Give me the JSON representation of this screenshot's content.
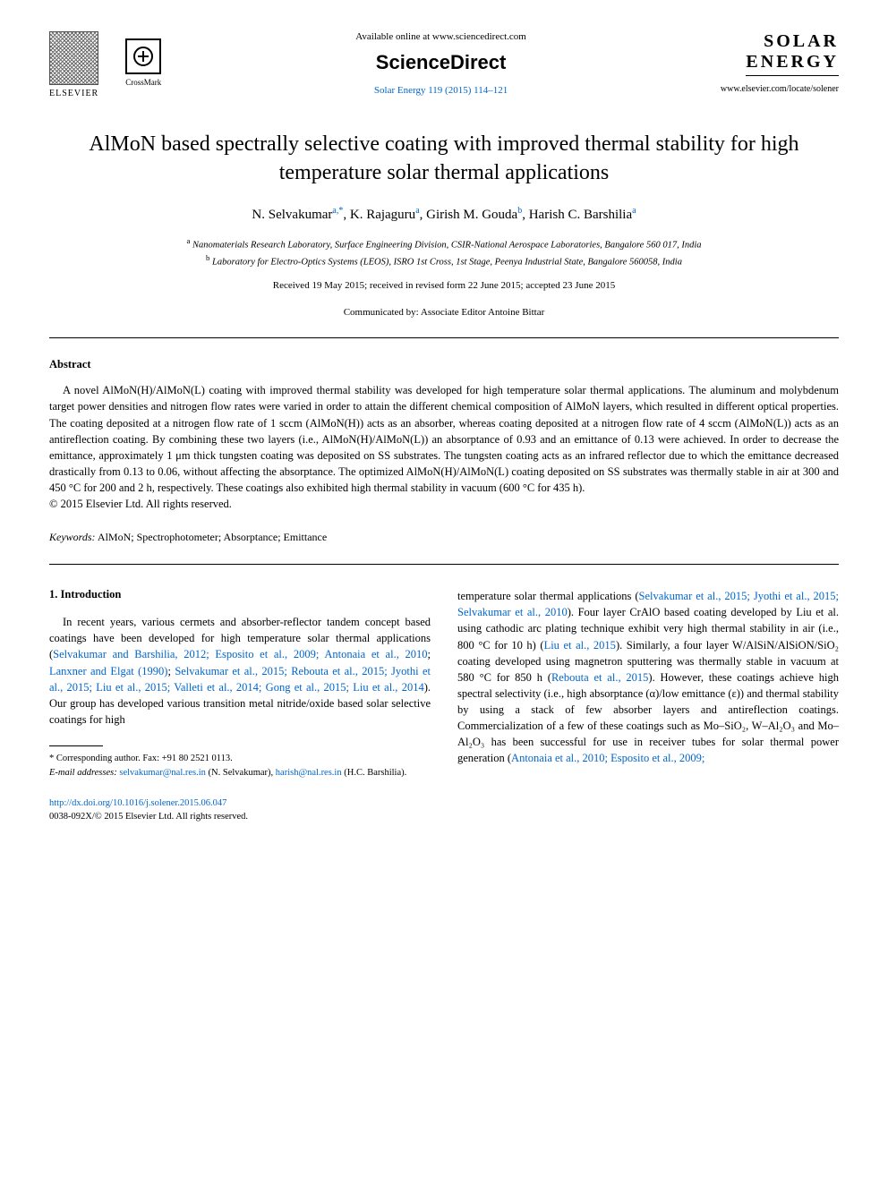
{
  "header": {
    "elsevier_label": "ELSEVIER",
    "crossmark_label": "CrossMark",
    "available_text": "Available online at www.sciencedirect.com",
    "sciencedirect": "ScienceDirect",
    "citation": "Solar Energy 119 (2015) 114–121",
    "journal_line1": "SOLAR",
    "journal_line2": "ENERGY",
    "journal_url": "www.elsevier.com/locate/solener"
  },
  "title": "AlMoN based spectrally selective coating with improved thermal stability for high temperature solar thermal applications",
  "authors_html": "N. Selvakumar|a,*|, K. Rajaguru|a|, Girish M. Gouda|b|, Harish C. Barshilia|a|",
  "authors": [
    {
      "name": "N. Selvakumar",
      "sup": "a,",
      "ast": "*"
    },
    {
      "name": "K. Rajaguru",
      "sup": "a"
    },
    {
      "name": "Girish M. Gouda",
      "sup": "b"
    },
    {
      "name": "Harish C. Barshilia",
      "sup": "a"
    }
  ],
  "affiliations": {
    "a": "Nanomaterials Research Laboratory, Surface Engineering Division, CSIR-National Aerospace Laboratories, Bangalore 560 017, India",
    "b": "Laboratory for Electro-Optics Systems (LEOS), ISRO 1st Cross, 1st Stage, Peenya Industrial State, Bangalore 560058, India"
  },
  "dates": "Received 19 May 2015; received in revised form 22 June 2015; accepted 23 June 2015",
  "communicated": "Communicated by: Associate Editor Antoine Bittar",
  "abstract_heading": "Abstract",
  "abstract_body": "A novel AlMoN(H)/AlMoN(L) coating with improved thermal stability was developed for high temperature solar thermal applications. The aluminum and molybdenum target power densities and nitrogen flow rates were varied in order to attain the different chemical composition of AlMoN layers, which resulted in different optical properties. The coating deposited at a nitrogen flow rate of 1 sccm (AlMoN(H)) acts as an absorber, whereas coating deposited at a nitrogen flow rate of 4 sccm (AlMoN(L)) acts as an antireflection coating. By combining these two layers (i.e., AlMoN(H)/AlMoN(L)) an absorptance of 0.93 and an emittance of 0.13 were achieved. In order to decrease the emittance, approximately 1 μm thick tungsten coating was deposited on SS substrates. The tungsten coating acts as an infrared reflector due to which the emittance decreased drastically from 0.13 to 0.06, without affecting the absorptance. The optimized AlMoN(H)/AlMoN(L) coating deposited on SS substrates was thermally stable in air at 300 and 450 °C for 200 and 2 h, respectively. These coatings also exhibited high thermal stability in vacuum (600 °C for 435 h).",
  "copyright": "© 2015 Elsevier Ltd. All rights reserved.",
  "keywords_label": "Keywords:",
  "keywords_value": "AlMoN; Spectrophotometer; Absorptance; Emittance",
  "intro_heading": "1. Introduction",
  "col_left_text_pre": "In recent years, various cermets and absorber-reflector tandem concept based coatings have been developed for high temperature solar thermal applications (",
  "col_left_refs": "Selvakumar and Barshilia, 2012; Esposito et al., 2009; Antonaia et al., 2010",
  "col_left_mid1": "; ",
  "col_left_ref2": "Lanxner and Elgat (1990)",
  "col_left_mid2": "; ",
  "col_left_ref3": "Selvakumar et al., 2015; Rebouta et al., 2015; Jyothi et al., 2015; Liu et al., 2015; Valleti et al., 2014; Gong et al., 2015; Liu et al., 2014",
  "col_left_text_post": "). Our group has developed various transition metal nitride/oxide based solar selective coatings for high",
  "col_right_pre": "temperature solar thermal applications (",
  "col_right_ref1": "Selvakumar et al., 2015; Jyothi et al., 2015; Selvakumar et al., 2010",
  "col_right_mid1": "). Four layer CrAlO based coating developed by Liu et al. using cathodic arc plating technique exhibit very high thermal stability in air (i.e., 800 °C for 10 h) (",
  "col_right_ref2": "Liu et al., 2015",
  "col_right_mid2": "). Similarly, a four layer W/AlSiN/AlSiON/SiO₂ coating developed using magnetron sputtering was thermally stable in vacuum at 580 °C for 850 h (",
  "col_right_ref3": "Rebouta et al., 2015",
  "col_right_mid3": "). However, these coatings achieve high spectral selectivity (i.e., high absorptance (α)/low emittance (ε)) and thermal stability by using a stack of few absorber layers and antireflection coatings. Commercialization of a few of these coatings such as Mo–SiO₂, W–Al₂O₃ and Mo–Al₂O₃ has been successful for use in receiver tubes for solar thermal power generation (",
  "col_right_ref4": "Antonaia et al., 2010; Esposito et al., 2009;",
  "footnote_corresponding": "* Corresponding author. Fax: +91 80 2521 0113.",
  "footnote_email_label": "E-mail addresses:",
  "footnote_email1": "selvakumar@nal.res.in",
  "footnote_email1_who": " (N. Selvakumar), ",
  "footnote_email2": "harish@nal.res.in",
  "footnote_email2_who": " (H.C. Barshilia).",
  "doi_link": "http://dx.doi.org/10.1016/j.solener.2015.06.047",
  "doi_copyright": "0038-092X/© 2015 Elsevier Ltd. All rights reserved.",
  "colors": {
    "link": "#0066cc",
    "text": "#000000",
    "bg": "#ffffff"
  }
}
